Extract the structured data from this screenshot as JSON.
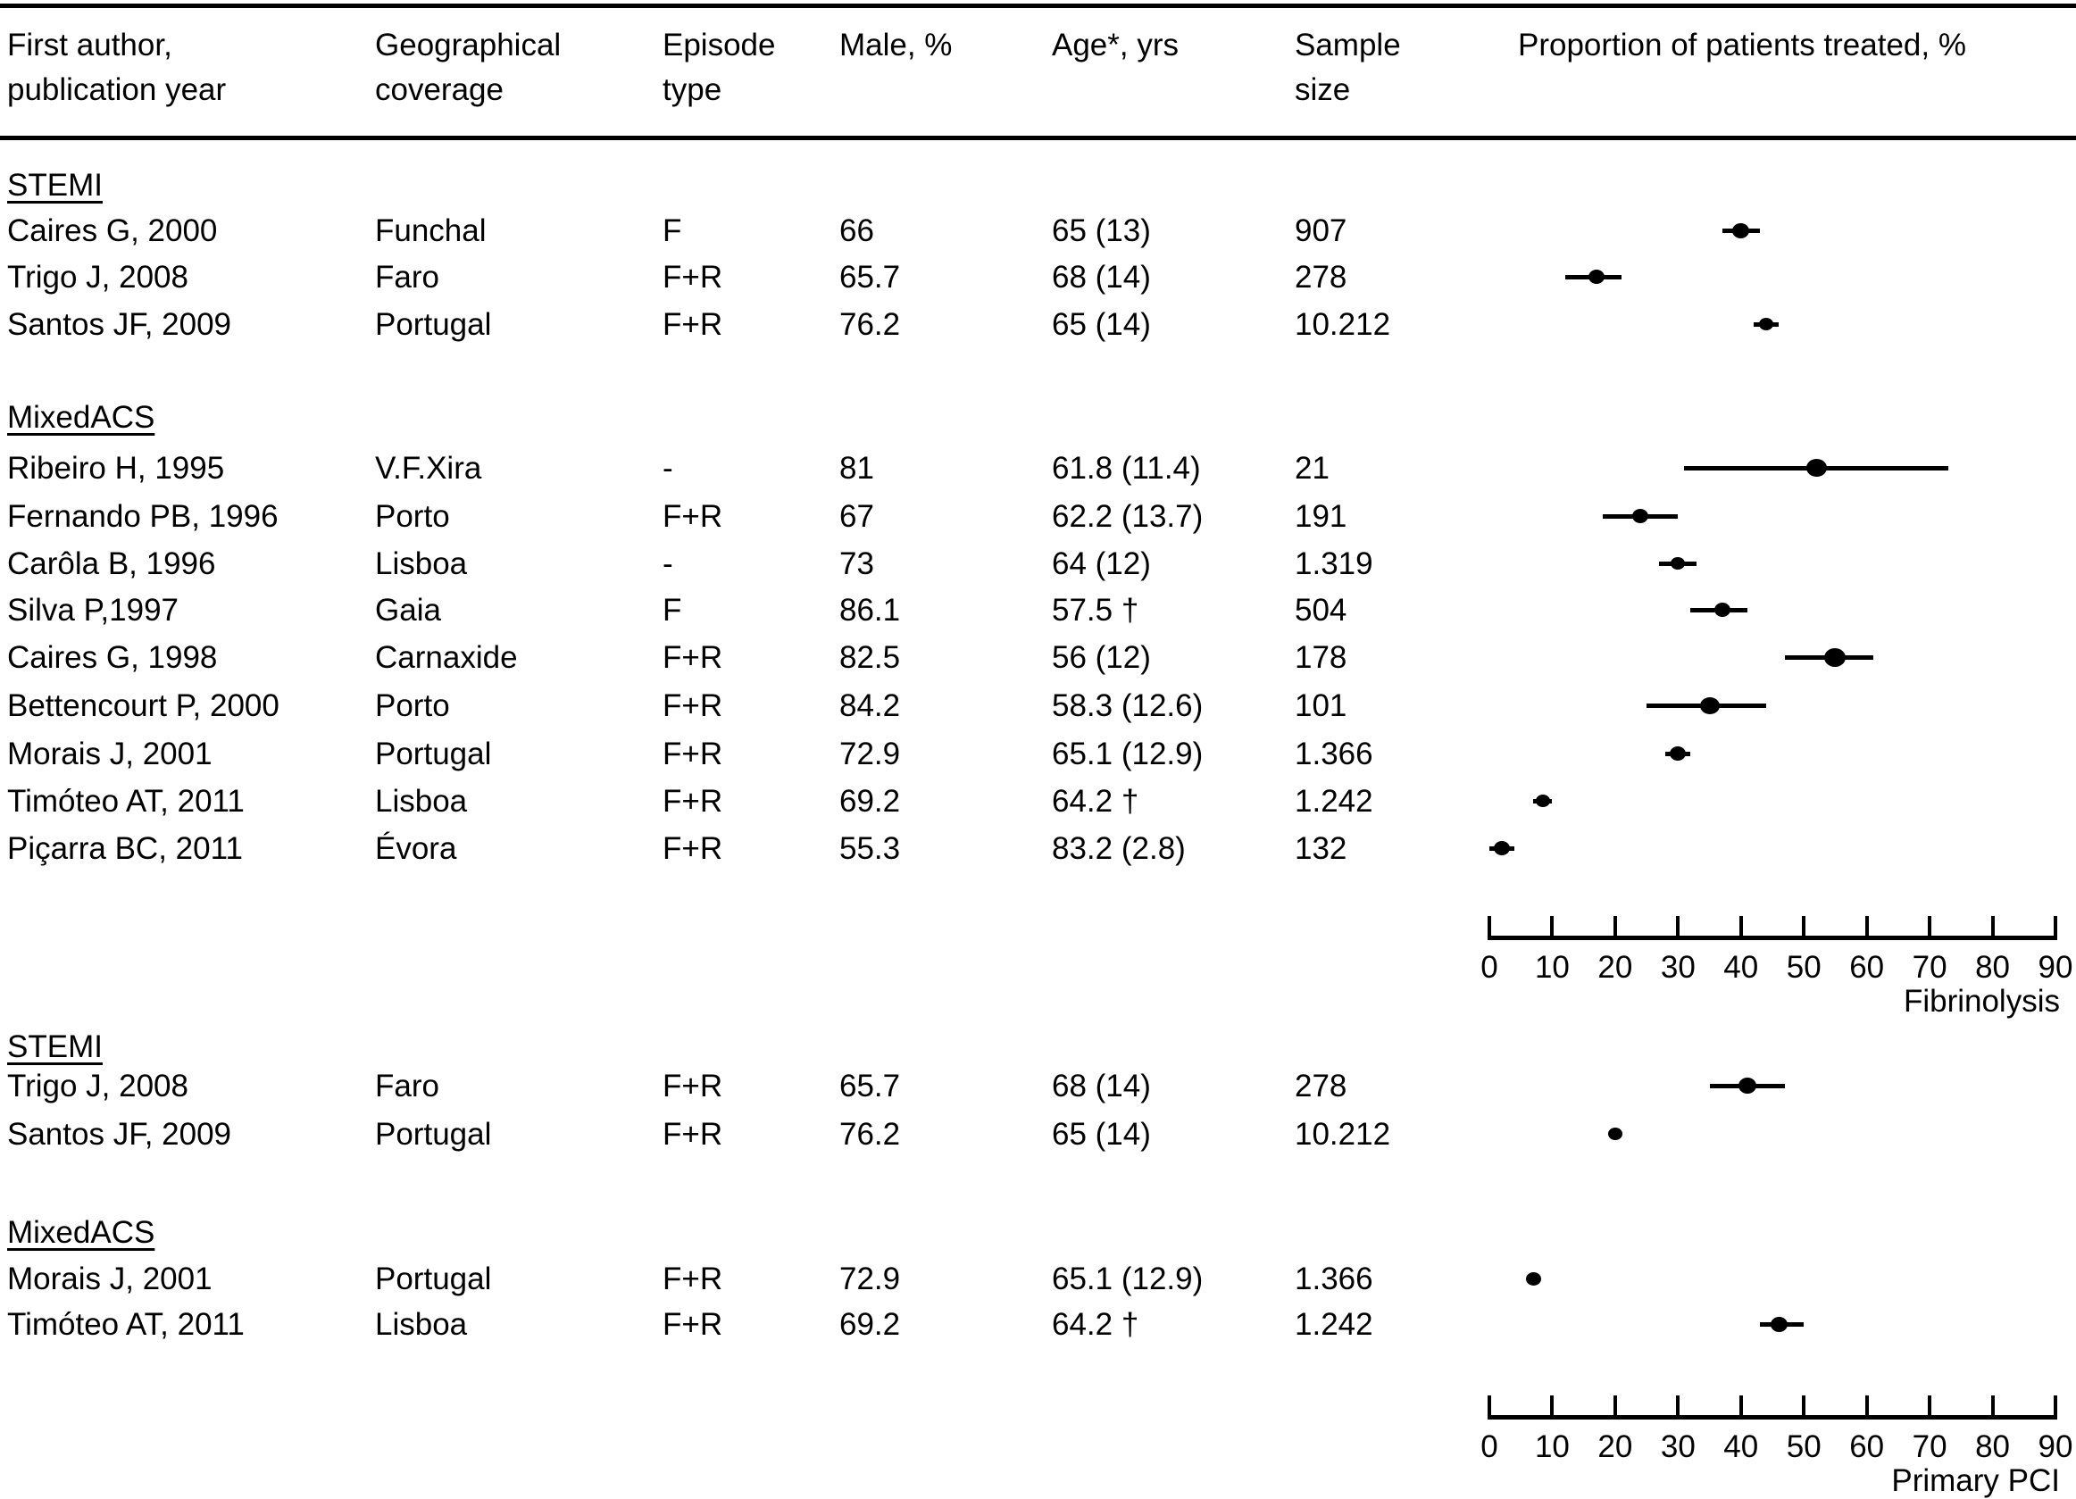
{
  "figure": {
    "columns": {
      "author": "First author,\npublication year",
      "geo": "Geographical\ncoverage",
      "episode": "Episode\ntype",
      "male": "Male, %",
      "age": "Age*, yrs",
      "sample": "Sample\nsize",
      "proportion": "Proportion of patients treated, %"
    }
  },
  "chart_data": [
    {
      "type": "scatter",
      "variant": "forest-plot",
      "treatment_label": "Fibrinolysis",
      "x_axis": {
        "min": 0,
        "max": 90,
        "ticks": [
          0,
          10,
          20,
          30,
          40,
          50,
          60,
          70,
          80,
          90
        ]
      },
      "groups": [
        {
          "label": "STEMI",
          "rows": [
            {
              "author": "Caires G, 2000",
              "geo": "Funchal",
              "episode": "F",
              "male": "66",
              "age": "65 (13)",
              "sample": "907",
              "est": 40,
              "lo": 37,
              "hi": 43,
              "marker": 19
            },
            {
              "author": "Trigo J, 2008",
              "geo": "Faro",
              "episode": "F+R",
              "male": "65.7",
              "age": "68 (14)",
              "sample": "278",
              "est": 17,
              "lo": 12,
              "hi": 21,
              "marker": 18
            },
            {
              "author": "Santos JF, 2009",
              "geo": "Portugal",
              "episode": "F+R",
              "male": "76.2",
              "age": "65 (14)",
              "sample": "10.212",
              "est": 44,
              "lo": 42,
              "hi": 46,
              "marker": 16
            }
          ]
        },
        {
          "label": "MixedACS",
          "rows": [
            {
              "author": "Ribeiro H, 1995",
              "geo": "V.F.Xira",
              "episode": "-",
              "male": "81",
              "age": "61.8 (11.4)",
              "sample": "21",
              "est": 52,
              "lo": 31,
              "hi": 73,
              "marker": 23
            },
            {
              "author": "Fernando PB, 1996",
              "geo": "Porto",
              "episode": "F+R",
              "male": "67",
              "age": "62.2 (13.7)",
              "sample": "191",
              "est": 24,
              "lo": 18,
              "hi": 30,
              "marker": 18
            },
            {
              "author": "Carôla B, 1996",
              "geo": "Lisboa",
              "episode": "-",
              "male": "73",
              "age": "64 (12)",
              "sample": "1.319",
              "est": 30,
              "lo": 27,
              "hi": 33,
              "marker": 16
            },
            {
              "author": "Silva P,1997",
              "geo": "Gaia",
              "episode": "F",
              "male": "86.1",
              "age": "57.5 †",
              "sample": "504",
              "est": 37,
              "lo": 32,
              "hi": 41,
              "marker": 18
            },
            {
              "author": "Caires G, 1998",
              "geo": "Carnaxide",
              "episode": "F+R",
              "male": "82.5",
              "age": "56 (12)",
              "sample": "178",
              "est": 55,
              "lo": 47,
              "hi": 61,
              "marker": 24
            },
            {
              "author": "Bettencourt P, 2000",
              "geo": "Porto",
              "episode": "F+R",
              "male": "84.2",
              "age": "58.3 (12.6)",
              "sample": "101",
              "est": 35,
              "lo": 25,
              "hi": 44,
              "marker": 22
            },
            {
              "author": "Morais J, 2001",
              "geo": "Portugal",
              "episode": "F+R",
              "male": "72.9",
              "age": "65.1 (12.9)",
              "sample": "1.366",
              "est": 30,
              "lo": 28,
              "hi": 32,
              "marker": 18
            },
            {
              "author": "Timóteo AT, 2011",
              "geo": "Lisboa",
              "episode": "F+R",
              "male": "69.2",
              "age": "64.2 †",
              "sample": "1.242",
              "est": 8.5,
              "lo": 7,
              "hi": 10,
              "marker": 16
            },
            {
              "author": "Piçarra BC, 2011",
              "geo": "Évora",
              "episode": "F+R",
              "male": "55.3",
              "age": "83.2 (2.8)",
              "sample": "132",
              "est": 2,
              "lo": 0,
              "hi": 4,
              "marker": 18
            }
          ]
        }
      ]
    },
    {
      "type": "scatter",
      "variant": "forest-plot",
      "treatment_label": "Primary PCI",
      "x_axis": {
        "min": 0,
        "max": 90,
        "ticks": [
          0,
          10,
          20,
          30,
          40,
          50,
          60,
          70,
          80,
          90
        ]
      },
      "groups": [
        {
          "label": "STEMI",
          "rows": [
            {
              "author": "Trigo J, 2008",
              "geo": "Faro",
              "episode": "F+R",
              "male": "65.7",
              "age": "68 (14)",
              "sample": "278",
              "est": 41,
              "lo": 35,
              "hi": 47,
              "marker": 20
            },
            {
              "author": "Santos JF, 2009",
              "geo": "Portugal",
              "episode": "F+R",
              "male": "76.2",
              "age": "65 (14)",
              "sample": "10.212",
              "est": 20,
              "lo": 19,
              "hi": 21,
              "marker": 16
            }
          ]
        },
        {
          "label": "MixedACS",
          "rows": [
            {
              "author": "Morais J, 2001",
              "geo": "Portugal",
              "episode": "F+R",
              "male": "72.9",
              "age": "65.1 (12.9)",
              "sample": "1.366",
              "est": 7,
              "lo": 6,
              "hi": 8,
              "marker": 17
            },
            {
              "author": "Timóteo AT, 2011",
              "geo": "Lisboa",
              "episode": "F+R",
              "male": "69.2",
              "age": "64.2 †",
              "sample": "1.242",
              "est": 46,
              "lo": 43,
              "hi": 50,
              "marker": 19
            }
          ]
        }
      ]
    }
  ]
}
